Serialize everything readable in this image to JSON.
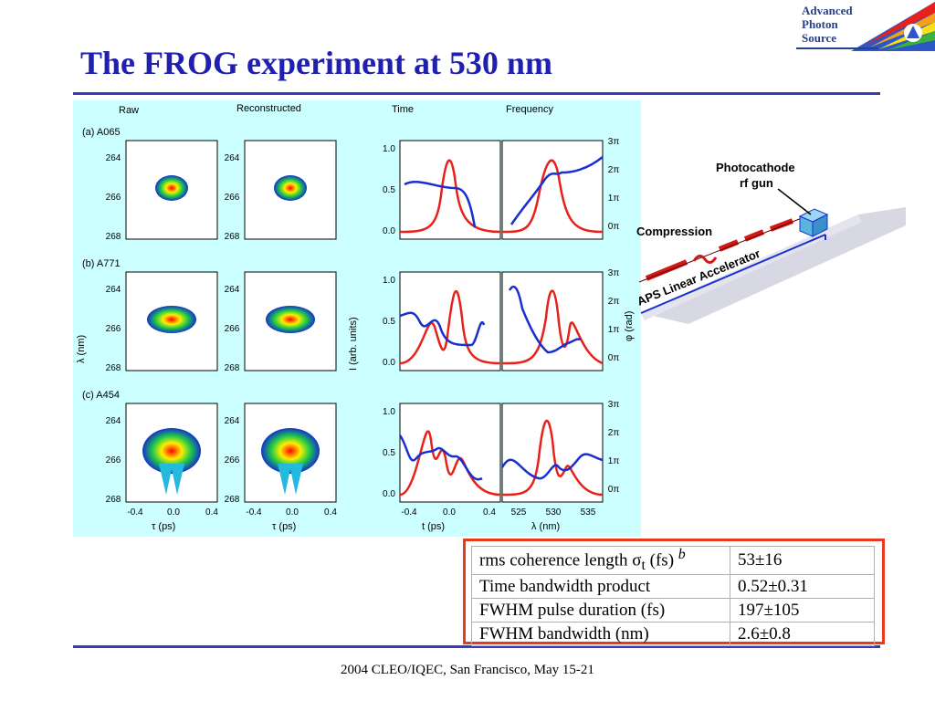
{
  "title": "The FROG experiment at 530 nm",
  "logo": {
    "line1": "Advanced",
    "line2": "Photon",
    "line3": "Source"
  },
  "footer": "2004 CLEO/IQEC, San Francisco, May 15-21",
  "figure": {
    "headers": {
      "raw": "Raw",
      "reconstructed": "Reconstructed",
      "time": "Time",
      "frequency": "Frequency"
    },
    "rows": [
      {
        "label": "(a) A065"
      },
      {
        "label": "(b) A771"
      },
      {
        "label": "(c) A454"
      }
    ],
    "lambda_ticks": [
      "264",
      "266",
      "268"
    ],
    "delay_ticks": [
      "-0.4",
      "0.0",
      "0.4"
    ],
    "intensity_ticks": [
      "1.0",
      "0.5",
      "0.0"
    ],
    "phase_ticks": [
      "3π",
      "2π",
      "1π",
      "0π"
    ],
    "wavelength_ticks": [
      "525",
      "530",
      "535"
    ],
    "axis_labels": {
      "lambda": "λ (nm)",
      "tau1": "τ (ps)",
      "tau2": "τ (ps)",
      "t": "t (ps)",
      "lam2": "λ (nm)",
      "intensity": "I (arb. units)",
      "phase": "φ (rad)"
    },
    "colors": {
      "intensity": "#e8201a",
      "phase": "#1a2fd0",
      "background": "#ccffff"
    }
  },
  "accelerator": {
    "gun_label_1": "Photocathode",
    "gun_label_2": "rf gun",
    "compression": "Compression",
    "linac": "APS Linear Accelerator"
  },
  "table": {
    "rows": [
      {
        "label": "rms coherence length σ",
        "sub": "t",
        "unit": " (fs) ",
        "note": "b",
        "value": "53±16"
      },
      {
        "label": "Time bandwidth product",
        "sub": "",
        "unit": "",
        "note": "",
        "value": "0.52±0.31"
      },
      {
        "label": "FWHM pulse duration (fs)",
        "sub": "",
        "unit": "",
        "note": "",
        "value": "197±105"
      },
      {
        "label": "FWHM bandwidth (nm)",
        "sub": "",
        "unit": "",
        "note": "",
        "value": "2.6±0.8"
      }
    ]
  }
}
